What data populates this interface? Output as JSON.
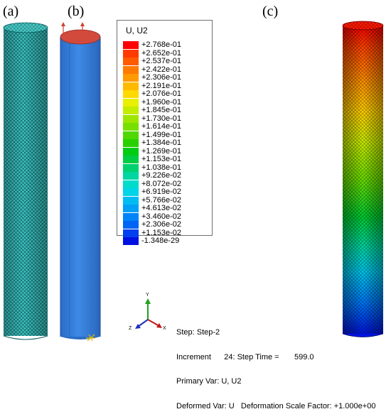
{
  "panels": {
    "a": "(a)",
    "b": "(b)",
    "c": "(c)"
  },
  "legend": {
    "title": "U, U2",
    "entries": [
      {
        "label": "+2.768e-01",
        "color": "#ff0000"
      },
      {
        "label": "+2.652e-01",
        "color": "#ff3b00"
      },
      {
        "label": "+2.537e-01",
        "color": "#ff5a00"
      },
      {
        "label": "+2.422e-01",
        "color": "#ff7a00"
      },
      {
        "label": "+2.306e-01",
        "color": "#ff9a00"
      },
      {
        "label": "+2.191e-01",
        "color": "#ffba00"
      },
      {
        "label": "+2.076e-01",
        "color": "#ffd900"
      },
      {
        "label": "+1.960e-01",
        "color": "#e8f000"
      },
      {
        "label": "+1.845e-01",
        "color": "#c2ec00"
      },
      {
        "label": "+1.730e-01",
        "color": "#9de600"
      },
      {
        "label": "+1.614e-01",
        "color": "#78e000"
      },
      {
        "label": "+1.499e-01",
        "color": "#4fd800"
      },
      {
        "label": "+1.384e-01",
        "color": "#28d000"
      },
      {
        "label": "+1.269e-01",
        "color": "#00cc14"
      },
      {
        "label": "+1.153e-01",
        "color": "#00cc44"
      },
      {
        "label": "+1.038e-01",
        "color": "#00d070"
      },
      {
        "label": "+9.226e-02",
        "color": "#00d6a0"
      },
      {
        "label": "+8.072e-02",
        "color": "#00dccc"
      },
      {
        "label": "+6.919e-02",
        "color": "#00d4e8"
      },
      {
        "label": "+5.766e-02",
        "color": "#00bcf2"
      },
      {
        "label": "+4.613e-02",
        "color": "#00a0f6"
      },
      {
        "label": "+3.460e-02",
        "color": "#0084f8"
      },
      {
        "label": "+2.306e-02",
        "color": "#0064f4"
      },
      {
        "label": "+1.153e-02",
        "color": "#0040ee"
      },
      {
        "label": "-1.348e-29",
        "color": "#0010e0"
      }
    ]
  },
  "info": {
    "step": "Step: Step-2",
    "increment": "Increment      24: Step Time =       599.0",
    "primary": "Primary Var: U, U2",
    "deformed": "Deformed Var: U   Deformation Scale Factor: +1.000e+00"
  },
  "triad": {
    "y": "Y",
    "x": "X",
    "z": "Z"
  },
  "colors": {
    "mesh_cyan": "#26b3b0",
    "cylinder_blue": "#2f7bd8",
    "cap_red": "#d24a3c"
  }
}
